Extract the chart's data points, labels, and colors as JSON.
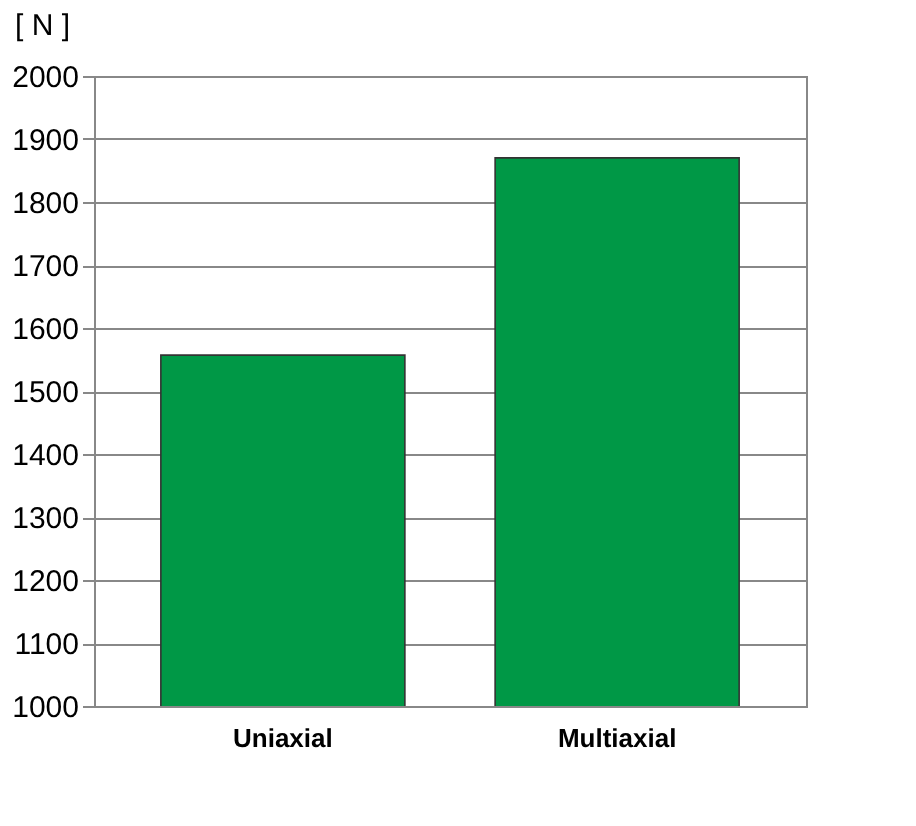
{
  "chart_data": {
    "type": "bar",
    "ylabel": "[ N ]",
    "categories": [
      "Uniaxial",
      "Multiaxial"
    ],
    "values": [
      1557,
      1870
    ],
    "color": "#009846",
    "ylim": [
      1000,
      2000
    ],
    "yticks": [
      1000,
      1100,
      1200,
      1300,
      1400,
      1500,
      1600,
      1700,
      1800,
      1900,
      2000
    ],
    "grid": "y"
  }
}
